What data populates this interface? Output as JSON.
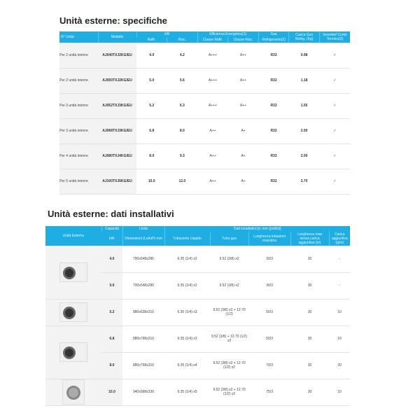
{
  "specs": {
    "title": "Unità esterne: specifiche",
    "headers": {
      "units": "N° Unità",
      "model": "Modello",
      "kw": "kW",
      "cool": "Raffr.",
      "heat": "Risc.",
      "eff": "Efficienza Energetica(1)",
      "eff_cool": "Classe Raffr.",
      "eff_heat": "Classe Risc.",
      "gas": "Gas",
      "refr": "Refrigerante(2)",
      "charge": "Carica Gas Refrig. (Kg)",
      "incent": "Incentivi/ Conto Termico(3)"
    },
    "rows": [
      {
        "units": "Per 2 unità interne",
        "model": "AJ040TXJ2KG/EU",
        "cool": "4.0",
        "heat": "4.2",
        "ec": "A+++",
        "eh": "A++",
        "gas": "R32",
        "charge": "0.98",
        "inc": "✓"
      },
      {
        "units": "Per 2 unità interne",
        "model": "AJ050TXJ2KG/EU",
        "cool": "5.0",
        "heat": "5.6",
        "ec": "A+++",
        "eh": "A++",
        "gas": "R32",
        "charge": "1.18",
        "inc": "✓"
      },
      {
        "units": "Per 3 unità interne",
        "model": "AJ052TXJ3KG/EU",
        "cool": "5.2",
        "heat": "6.3",
        "ec": "A+++",
        "eh": "A++",
        "gas": "R32",
        "charge": "1.55",
        "inc": "✓"
      },
      {
        "units": "Per 3 unità interne",
        "model": "AJ068TXJ3KG/EU",
        "cool": "6.8",
        "heat": "8.0",
        "ec": "A++",
        "eh": "A+",
        "gas": "R32",
        "charge": "2.00",
        "inc": "✓"
      },
      {
        "units": "Per 4 unità interne",
        "model": "AJ080TXJ4KG/EU",
        "cool": "8.0",
        "heat": "9.3",
        "ec": "A++",
        "eh": "A+",
        "gas": "R32",
        "charge": "2.00",
        "inc": "✓"
      },
      {
        "units": "Per 5 unità interne",
        "model": "AJ100TXJ5KG/EU",
        "cool": "10.0",
        "heat": "12.0",
        "ec": "A++",
        "eh": "A+",
        "gas": "R32",
        "charge": "2.70",
        "inc": "✓"
      }
    ]
  },
  "install": {
    "title": "Unità esterne: dati installativi",
    "headers": {
      "unit": "Unità Esterna",
      "cap": "Capacità",
      "kw": "kW",
      "unita": "Unità",
      "dim": "Dimensioni (LxAxP) mm",
      "data": "Dati installativi [ø, mm (pollici)]",
      "liquid": "Tubazione Liquido",
      "gas": "Tubo gas",
      "maxlen": "Lunghezza tubazioni massima",
      "nocharge": "Lunghezza max senza carica aggiuntiva (m)",
      "addcharge": "Carica aggiuntiva (g/m)"
    },
    "rows": [
      {
        "cap": "4.0",
        "dim": "790x548x285",
        "liq": "6.35 (1/4) x2",
        "gas": "9.52 (3/8) x2",
        "len": "30/3",
        "nc": "30",
        "add": "-"
      },
      {
        "cap": "5.0",
        "dim": "790x548x285",
        "liq": "6.35 (1/4) x2",
        "gas": "9.52 (3/8) x2",
        "len": "30/3",
        "nc": "30",
        "add": "-"
      },
      {
        "cap": "5.2",
        "dim": "880x638x310",
        "liq": "6.35 (1/4) x3",
        "gas": "9.52 (3/8) x2 + 12.70 (1/2)",
        "len": "50/3",
        "nc": "30",
        "add": "10"
      },
      {
        "cap": "6.8",
        "dim": "880x798x310",
        "liq": "6.35 (1/4) x3",
        "gas": "9.52 (3/8) + 12.70 (1/2) x2",
        "len": "50/3",
        "nc": "30",
        "add": "10"
      },
      {
        "cap": "8.0",
        "dim": "880x798x310",
        "liq": "6.35 (1/4) x4",
        "gas": "9.52 (3/8) x2 + 12.70 (1/2) x2",
        "len": "70/3",
        "nc": "30",
        "add": "20"
      },
      {
        "cap": "10.0",
        "dim": "940x998x330",
        "liq": "6.35 (1/4) x5",
        "gas": "9.52 (3/8) x2 + 12.70 (1/2) x3",
        "len": "75/3",
        "nc": "30",
        "add": "10"
      }
    ]
  }
}
